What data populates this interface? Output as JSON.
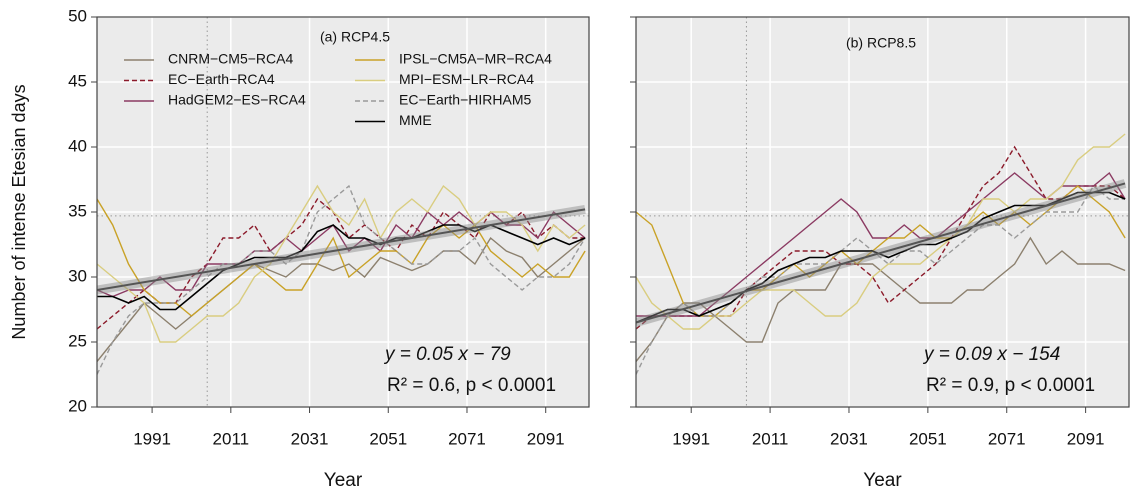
{
  "chart_data": [
    {
      "type": "line",
      "title": "(a) RCP4.5",
      "y_label": "Number of intense Etesian days",
      "x_label": "Year",
      "x": [
        1977,
        1981,
        1985,
        1989,
        1993,
        1997,
        2001,
        2005,
        2009,
        2013,
        2017,
        2021,
        2025,
        2029,
        2033,
        2037,
        2041,
        2045,
        2049,
        2053,
        2057,
        2061,
        2065,
        2069,
        2073,
        2077,
        2081,
        2085,
        2089,
        2093,
        2097,
        2101
      ],
      "xlim": [
        1977,
        2102
      ],
      "ylim": [
        20,
        50
      ],
      "xticks": [
        1991,
        2011,
        2031,
        2051,
        2071,
        2091
      ],
      "yticks": [
        20,
        25,
        30,
        35,
        40,
        45,
        50
      ],
      "grid": true,
      "legend": "top",
      "ref_x": 2005,
      "ref_y": 34.7,
      "trend": {
        "x": [
          1977,
          2101
        ],
        "values": [
          29,
          35.2
        ]
      },
      "equation": "y = 0.05 x − 79",
      "r2": "R² = 0.6,  p < 0.0001",
      "series": [
        {
          "name": "CNRM−CM5−RCA4",
          "color": "#8c806e",
          "dash": false,
          "values": [
            23.5,
            25,
            26.5,
            28,
            27,
            26,
            27,
            28,
            29,
            30,
            31,
            30.5,
            30,
            31,
            31,
            30.5,
            31,
            30,
            31.5,
            31,
            30.5,
            31,
            32,
            32,
            31,
            33,
            32,
            31.5,
            30,
            31,
            32,
            33
          ]
        },
        {
          "name": "EC−Earth−RCA4",
          "color": "#8b1a2a",
          "dash": true,
          "values": [
            26,
            27,
            28,
            29,
            28,
            28,
            30,
            31,
            33,
            33,
            34,
            32,
            33,
            34,
            36,
            35,
            33,
            34,
            33,
            32,
            34,
            33,
            35,
            34,
            33,
            35,
            34,
            35,
            33,
            34,
            33,
            33
          ]
        },
        {
          "name": "HadGEM2−ES−RCA4",
          "color": "#8b3a62",
          "dash": false,
          "values": [
            29,
            28.5,
            29,
            29,
            30,
            29,
            29,
            31,
            31,
            31,
            32,
            32,
            33,
            32,
            33,
            34,
            32,
            33,
            32,
            34,
            33,
            35,
            34,
            35,
            34,
            35,
            34,
            34,
            33,
            35,
            34,
            33
          ]
        },
        {
          "name": "IPSL−CM5A−MR−RCA4",
          "color": "#c9a227",
          "dash": false,
          "values": [
            36,
            34,
            31,
            29,
            28,
            28,
            27,
            28,
            29,
            30,
            31,
            30,
            29,
            29,
            31,
            33,
            30,
            31,
            32,
            32,
            31,
            33,
            34,
            33,
            34,
            32,
            31,
            30,
            31,
            30,
            30,
            32
          ]
        },
        {
          "name": "MPI−ESM−LR−RCA4",
          "color": "#d9cd80",
          "dash": false,
          "values": [
            31,
            30,
            29,
            28,
            25,
            25,
            26,
            27,
            27,
            28,
            30,
            31,
            33,
            35,
            37,
            35,
            34,
            36,
            33,
            35,
            36,
            35,
            37,
            36,
            34,
            35,
            35,
            34,
            32,
            34,
            33,
            34
          ]
        },
        {
          "name": "EC−Earth−HIRHAM5",
          "color": "#9a9a9a",
          "dash": true,
          "values": [
            22.5,
            25,
            27,
            28,
            28,
            28,
            29,
            30,
            31,
            31,
            32,
            32,
            31,
            32,
            35,
            36,
            37,
            34,
            33,
            32,
            31,
            31,
            32,
            32,
            33,
            31,
            30,
            29,
            30,
            30,
            31,
            33
          ]
        },
        {
          "name": "MME",
          "color": "#000000",
          "dash": false,
          "values": [
            28.5,
            28.5,
            28,
            28.5,
            27.5,
            27.5,
            28.5,
            29.5,
            30.5,
            31,
            31.5,
            31.5,
            31.5,
            32,
            33.5,
            34,
            33,
            33,
            32.5,
            33,
            33,
            33.5,
            34,
            34,
            33.5,
            34,
            33.5,
            33,
            32.5,
            33,
            32.5,
            33
          ]
        }
      ]
    },
    {
      "type": "line",
      "title": "(b) RCP8.5",
      "x_label": "Year",
      "x": [
        1977,
        1981,
        1985,
        1989,
        1993,
        1997,
        2001,
        2005,
        2009,
        2013,
        2017,
        2021,
        2025,
        2029,
        2033,
        2037,
        2041,
        2045,
        2049,
        2053,
        2057,
        2061,
        2065,
        2069,
        2073,
        2077,
        2081,
        2085,
        2089,
        2093,
        2097,
        2101
      ],
      "xlim": [
        1977,
        2102
      ],
      "ylim": [
        20,
        50
      ],
      "xticks": [
        1991,
        2011,
        2031,
        2051,
        2071,
        2091
      ],
      "yticks": [
        20,
        25,
        30,
        35,
        40,
        45,
        50
      ],
      "grid": true,
      "ref_x": 2005,
      "ref_y": 34.7,
      "trend": {
        "x": [
          1977,
          2101
        ],
        "values": [
          26.5,
          37.2
        ]
      },
      "equation": "y = 0.09 x − 154",
      "r2": "R² = 0.9,  p < 0.0001",
      "series": [
        {
          "color": "#8c806e",
          "dash": false,
          "values": [
            23.5,
            25,
            27,
            28,
            28,
            27,
            26,
            25,
            25,
            28,
            29,
            29,
            29,
            31,
            31,
            31,
            30,
            29,
            28,
            28,
            28,
            29,
            29,
            30,
            31,
            33,
            31,
            32,
            31,
            31,
            31,
            30.5
          ]
        },
        {
          "color": "#8b1a2a",
          "dash": true,
          "values": [
            26,
            27,
            27,
            27,
            27,
            27,
            27,
            29,
            30,
            31,
            32,
            32,
            32,
            31,
            31,
            30,
            28,
            29,
            30,
            31,
            33,
            35,
            37,
            38,
            40,
            38,
            36,
            36,
            37,
            37,
            37,
            36
          ]
        },
        {
          "color": "#8b3a62",
          "dash": false,
          "values": [
            27,
            27,
            27,
            27,
            27,
            28,
            29,
            30,
            31,
            32,
            33,
            34,
            35,
            36,
            35,
            33,
            33,
            34,
            33,
            33,
            34,
            35,
            36,
            37,
            38,
            37,
            36,
            37,
            37,
            37,
            38,
            36
          ]
        },
        {
          "color": "#c9a227",
          "dash": false,
          "values": [
            35,
            34,
            31,
            28,
            27,
            27,
            28,
            29,
            29,
            30,
            31,
            30,
            31,
            32,
            31,
            32,
            33,
            33,
            34,
            33,
            33,
            34,
            35,
            34,
            35,
            34,
            35,
            36,
            37,
            36,
            35,
            33
          ]
        },
        {
          "color": "#d9cd80",
          "dash": false,
          "values": [
            30,
            28,
            27,
            26,
            26,
            27,
            27,
            28,
            29,
            29,
            29,
            28,
            27,
            27,
            28,
            30,
            31,
            31,
            31,
            32,
            33,
            34,
            36,
            36,
            35,
            36,
            36,
            37,
            39,
            40,
            40,
            41
          ]
        },
        {
          "color": "#9a9a9a",
          "dash": true,
          "values": [
            22.5,
            25,
            27,
            28,
            27,
            27,
            28,
            29,
            30,
            30,
            31,
            31,
            31,
            32,
            33,
            32,
            31,
            32,
            32,
            31,
            32,
            33,
            34,
            34,
            33,
            34,
            35,
            35,
            35,
            37,
            36,
            36
          ]
        },
        {
          "color": "#000000",
          "dash": false,
          "values": [
            26.5,
            27,
            27.5,
            27.5,
            27,
            27.5,
            28,
            29,
            29.5,
            30.5,
            31,
            31.5,
            31.5,
            32,
            32,
            32,
            31.5,
            32,
            32.5,
            32.5,
            33,
            33.5,
            34.5,
            35,
            35.5,
            35.5,
            35.5,
            36,
            36.5,
            36.5,
            36.5,
            36
          ]
        }
      ]
    }
  ]
}
